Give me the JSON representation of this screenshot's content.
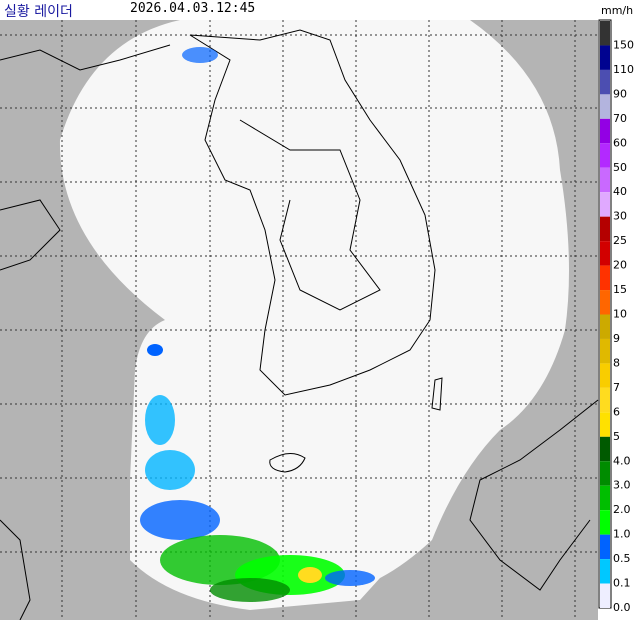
{
  "header": {
    "title": "실황 레이더",
    "timestamp": "2026.04.03.12:45"
  },
  "legend": {
    "unit": "mm/h",
    "items": [
      {
        "label": "150",
        "color": "#333333"
      },
      {
        "label": "110",
        "color": "#000390"
      },
      {
        "label": "90",
        "color": "#4c4eb1"
      },
      {
        "label": "70",
        "color": "#b3b4de"
      },
      {
        "label": "60",
        "color": "#9300e4"
      },
      {
        "label": "50",
        "color": "#b329ff"
      },
      {
        "label": "40",
        "color": "#c969ff"
      },
      {
        "label": "30",
        "color": "#e0a9ff"
      },
      {
        "label": "25",
        "color": "#b40000"
      },
      {
        "label": "20",
        "color": "#d20000"
      },
      {
        "label": "15",
        "color": "#ff3200"
      },
      {
        "label": "10",
        "color": "#ff6600"
      },
      {
        "label": "9",
        "color": "#ccaa00"
      },
      {
        "label": "8",
        "color": "#e0b900"
      },
      {
        "label": "7",
        "color": "#f9cd00"
      },
      {
        "label": "6",
        "color": "#ffdc1f"
      },
      {
        "label": "5",
        "color": "#ffe100"
      },
      {
        "label": "4.0",
        "color": "#005a00"
      },
      {
        "label": "3.0",
        "color": "#008c00"
      },
      {
        "label": "2.0",
        "color": "#00be00"
      },
      {
        "label": "1.0",
        "color": "#00ff00"
      },
      {
        "label": "0.5",
        "color": "#0063ff"
      },
      {
        "label": "0.1",
        "color": "#00c8ff"
      },
      {
        "label": "0.0",
        "color": "#eeeeff"
      }
    ]
  }
}
